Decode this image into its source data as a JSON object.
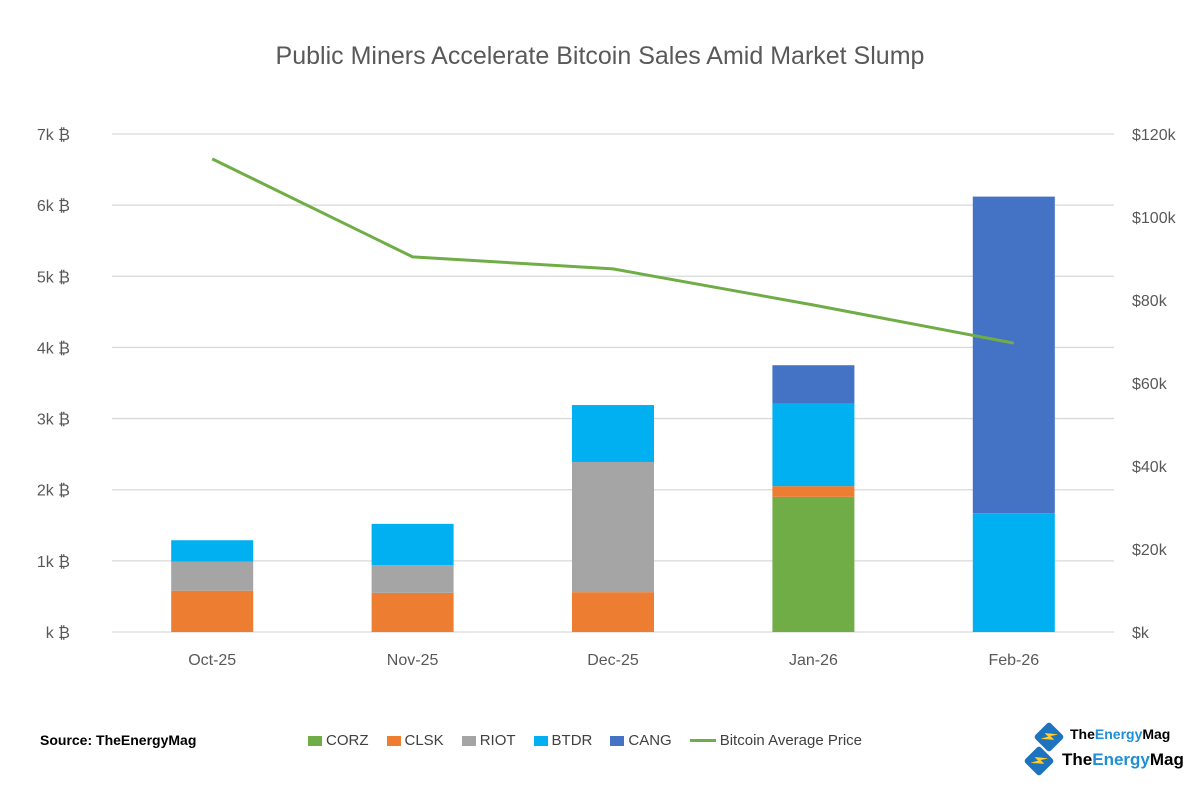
{
  "chart_data": {
    "type": "bar",
    "stacked": true,
    "title": "Public Miners Accelerate Bitcoin Sales Amid Market Slump",
    "categories": [
      "Oct-25",
      "Nov-25",
      "Dec-25",
      "Jan-26",
      "Feb-26"
    ],
    "series": [
      {
        "name": "CORZ",
        "color": "#70ad47",
        "values": [
          0,
          0,
          0,
          1900,
          0
        ]
      },
      {
        "name": "CLSK",
        "color": "#ed7d31",
        "values": [
          580,
          550,
          560,
          150,
          0
        ]
      },
      {
        "name": "RIOT",
        "color": "#a5a5a5",
        "values": [
          410,
          390,
          1830,
          0,
          0
        ]
      },
      {
        "name": "BTDR",
        "color": "#00b0f0",
        "values": [
          300,
          580,
          800,
          1160,
          1670
        ]
      },
      {
        "name": "CANG",
        "color": "#4472c4",
        "values": [
          0,
          0,
          0,
          540,
          4450
        ]
      }
    ],
    "line_series": {
      "name": "Bitcoin Average Price",
      "color": "#70ad47",
      "axis": "right",
      "values": [
        114000,
        90400,
        87500,
        78800,
        69600
      ]
    },
    "y_left": {
      "range": [
        0,
        7000
      ],
      "ticks": [
        "k ₿",
        "1k ₿",
        "2k ₿",
        "3k ₿",
        "4k ₿",
        "5k ₿",
        "6k ₿",
        "7k ₿"
      ]
    },
    "y_right": {
      "range": [
        0,
        120000
      ],
      "ticks": [
        "$k",
        "$20k",
        "$40k",
        "$60k",
        "$80k",
        "$100k",
        "$120k"
      ]
    },
    "grid": true,
    "legend_placement": "bottom"
  },
  "source": "Source: TheEnergyMag",
  "logo": {
    "part1": "The",
    "part2": "Energy",
    "part3": "Mag"
  }
}
